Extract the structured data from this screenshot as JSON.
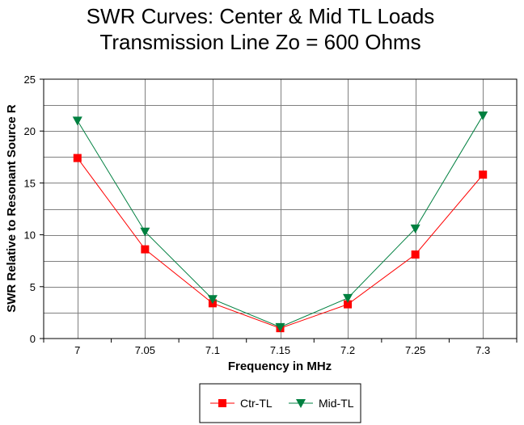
{
  "chart_data": {
    "type": "line",
    "title_lines": [
      "SWR Curves:  Center & Mid TL Loads",
      "Transmission Line Zo = 600 Ohms"
    ],
    "xlabel": "Frequency in MHz",
    "ylabel": "SWR Relative to Resonant Source R",
    "categories": [
      "7",
      "7.05",
      "7.1",
      "7.15",
      "7.2",
      "7.25",
      "7.3"
    ],
    "ylim": [
      0,
      25
    ],
    "yticks": [
      0,
      5,
      10,
      15,
      20,
      25
    ],
    "grid": true,
    "legend_position": "bottom",
    "series": [
      {
        "name": "Ctr-TL",
        "color": "#ff0000",
        "marker": "square",
        "values": [
          17.4,
          8.6,
          3.4,
          1.0,
          3.3,
          8.1,
          15.8
        ]
      },
      {
        "name": "Mid-TL",
        "color": "#008040",
        "marker": "triangle-down",
        "values": [
          21.0,
          10.3,
          3.8,
          1.1,
          3.9,
          10.6,
          21.5
        ]
      }
    ]
  }
}
